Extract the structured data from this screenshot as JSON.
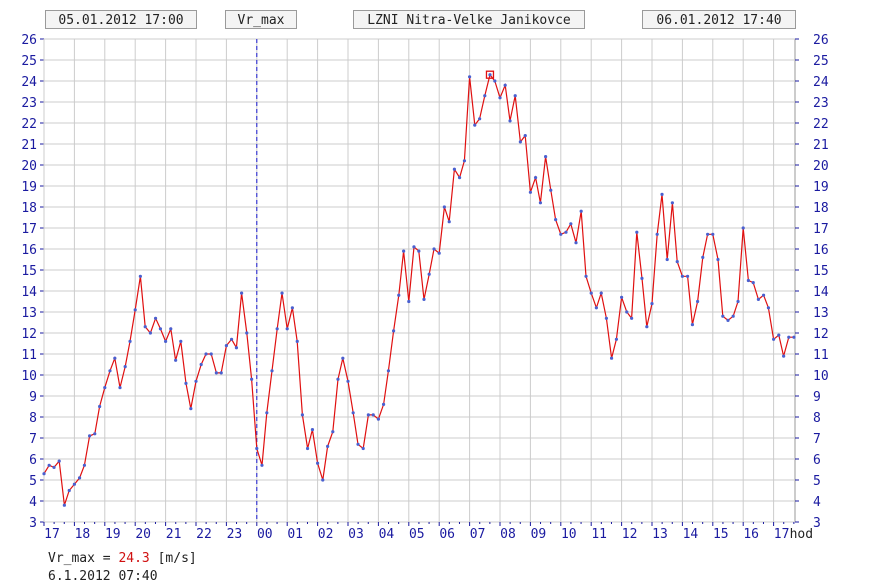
{
  "header": {
    "start_time": "05.01.2012 17:00",
    "variable": "Vr_max",
    "station": "LZNI Nitra-Velke Janikovce",
    "end_time": "06.01.2012 17:40"
  },
  "readout": {
    "label": "Vr_max =",
    "value": "24.3",
    "unit": "[m/s]",
    "timestamp": "6.1.2012 07:40"
  },
  "colors": {
    "line": "#e01010",
    "points": "#4a60d0",
    "grid": "#cccccc",
    "axis_text": "#1a1aa0",
    "day_divider": "#1a1ad0",
    "max_marker": "#e01010"
  },
  "chart_data": {
    "type": "line",
    "x_unit": "hours since 05.01.2012 17:00",
    "xlim": [
      0,
      24.67
    ],
    "ylim": [
      3,
      26
    ],
    "y_ticks": [
      3,
      4,
      5,
      6,
      7,
      8,
      9,
      10,
      11,
      12,
      13,
      14,
      15,
      16,
      17,
      18,
      19,
      20,
      21,
      22,
      23,
      24,
      25,
      26
    ],
    "x_tick_labels": [
      "17",
      "18",
      "19",
      "20",
      "21",
      "22",
      "23",
      "00",
      "01",
      "02",
      "03",
      "04",
      "05",
      "06",
      "07",
      "08",
      "09",
      "10",
      "11",
      "12",
      "13",
      "14",
      "15",
      "16",
      "17"
    ],
    "x_unit_label": "hod",
    "day_divider_hour": 7,
    "grid": true,
    "max_point": {
      "x": 14.67,
      "y": 24.3
    },
    "series": [
      {
        "values": [
          [
            0.0,
            5.3
          ],
          [
            0.17,
            5.7
          ],
          [
            0.33,
            5.6
          ],
          [
            0.5,
            5.9
          ],
          [
            0.67,
            3.8
          ],
          [
            0.83,
            4.5
          ],
          [
            1.0,
            4.8
          ],
          [
            1.17,
            5.1
          ],
          [
            1.33,
            5.7
          ],
          [
            1.5,
            7.1
          ],
          [
            1.67,
            7.2
          ],
          [
            1.83,
            8.5
          ],
          [
            2.0,
            9.4
          ],
          [
            2.17,
            10.2
          ],
          [
            2.33,
            10.8
          ],
          [
            2.5,
            9.4
          ],
          [
            2.67,
            10.4
          ],
          [
            2.83,
            11.6
          ],
          [
            3.0,
            13.1
          ],
          [
            3.17,
            14.7
          ],
          [
            3.33,
            12.3
          ],
          [
            3.5,
            12.0
          ],
          [
            3.67,
            12.7
          ],
          [
            3.83,
            12.2
          ],
          [
            4.0,
            11.6
          ],
          [
            4.17,
            12.2
          ],
          [
            4.33,
            10.7
          ],
          [
            4.5,
            11.6
          ],
          [
            4.67,
            9.6
          ],
          [
            4.83,
            8.4
          ],
          [
            5.0,
            9.7
          ],
          [
            5.17,
            10.5
          ],
          [
            5.33,
            11.0
          ],
          [
            5.5,
            11.0
          ],
          [
            5.67,
            10.1
          ],
          [
            5.83,
            10.1
          ],
          [
            6.0,
            11.4
          ],
          [
            6.17,
            11.7
          ],
          [
            6.33,
            11.3
          ],
          [
            6.5,
            13.9
          ],
          [
            6.67,
            12.0
          ],
          [
            6.83,
            9.8
          ],
          [
            7.0,
            6.5
          ],
          [
            7.17,
            5.7
          ],
          [
            7.33,
            8.2
          ],
          [
            7.5,
            10.2
          ],
          [
            7.67,
            12.2
          ],
          [
            7.83,
            13.9
          ],
          [
            8.0,
            12.2
          ],
          [
            8.17,
            13.2
          ],
          [
            8.33,
            11.6
          ],
          [
            8.5,
            8.1
          ],
          [
            8.67,
            6.5
          ],
          [
            8.83,
            7.4
          ],
          [
            9.0,
            5.8
          ],
          [
            9.17,
            5.0
          ],
          [
            9.33,
            6.6
          ],
          [
            9.5,
            7.3
          ],
          [
            9.67,
            9.8
          ],
          [
            9.83,
            10.8
          ],
          [
            10.0,
            9.7
          ],
          [
            10.17,
            8.2
          ],
          [
            10.33,
            6.7
          ],
          [
            10.5,
            6.5
          ],
          [
            10.67,
            8.1
          ],
          [
            10.83,
            8.1
          ],
          [
            11.0,
            7.9
          ],
          [
            11.17,
            8.6
          ],
          [
            11.33,
            10.2
          ],
          [
            11.5,
            12.1
          ],
          [
            11.67,
            13.8
          ],
          [
            11.83,
            15.9
          ],
          [
            12.0,
            13.5
          ],
          [
            12.17,
            16.1
          ],
          [
            12.33,
            15.9
          ],
          [
            12.5,
            13.6
          ],
          [
            12.67,
            14.8
          ],
          [
            12.83,
            16.0
          ],
          [
            13.0,
            15.8
          ],
          [
            13.17,
            18.0
          ],
          [
            13.33,
            17.3
          ],
          [
            13.5,
            19.8
          ],
          [
            13.67,
            19.4
          ],
          [
            13.83,
            20.2
          ],
          [
            14.0,
            24.2
          ],
          [
            14.17,
            21.9
          ],
          [
            14.33,
            22.2
          ],
          [
            14.5,
            23.3
          ],
          [
            14.67,
            24.3
          ],
          [
            14.83,
            24.0
          ],
          [
            15.0,
            23.2
          ],
          [
            15.17,
            23.8
          ],
          [
            15.33,
            22.1
          ],
          [
            15.5,
            23.3
          ],
          [
            15.67,
            21.1
          ],
          [
            15.83,
            21.4
          ],
          [
            16.0,
            18.7
          ],
          [
            16.17,
            19.4
          ],
          [
            16.33,
            18.2
          ],
          [
            16.5,
            20.4
          ],
          [
            16.67,
            18.8
          ],
          [
            16.83,
            17.4
          ],
          [
            17.0,
            16.7
          ],
          [
            17.17,
            16.8
          ],
          [
            17.33,
            17.2
          ],
          [
            17.5,
            16.3
          ],
          [
            17.67,
            17.8
          ],
          [
            17.83,
            14.7
          ],
          [
            18.0,
            13.9
          ],
          [
            18.17,
            13.2
          ],
          [
            18.33,
            13.9
          ],
          [
            18.5,
            12.7
          ],
          [
            18.67,
            10.8
          ],
          [
            18.83,
            11.7
          ],
          [
            19.0,
            13.7
          ],
          [
            19.17,
            13.0
          ],
          [
            19.33,
            12.7
          ],
          [
            19.5,
            16.8
          ],
          [
            19.67,
            14.6
          ],
          [
            19.83,
            12.3
          ],
          [
            20.0,
            13.4
          ],
          [
            20.17,
            16.7
          ],
          [
            20.33,
            18.6
          ],
          [
            20.5,
            15.5
          ],
          [
            20.67,
            18.2
          ],
          [
            20.83,
            15.4
          ],
          [
            21.0,
            14.7
          ],
          [
            21.17,
            14.7
          ],
          [
            21.33,
            12.4
          ],
          [
            21.5,
            13.5
          ],
          [
            21.67,
            15.6
          ],
          [
            21.83,
            16.7
          ],
          [
            22.0,
            16.7
          ],
          [
            22.17,
            15.5
          ],
          [
            22.33,
            12.8
          ],
          [
            22.5,
            12.6
          ],
          [
            22.67,
            12.8
          ],
          [
            22.83,
            13.5
          ],
          [
            23.0,
            17.0
          ],
          [
            23.17,
            14.5
          ],
          [
            23.33,
            14.4
          ],
          [
            23.5,
            13.6
          ],
          [
            23.67,
            13.8
          ],
          [
            23.83,
            13.2
          ],
          [
            24.0,
            11.7
          ],
          [
            24.17,
            11.9
          ],
          [
            24.33,
            10.9
          ],
          [
            24.5,
            11.8
          ],
          [
            24.67,
            11.8
          ]
        ]
      }
    ]
  }
}
